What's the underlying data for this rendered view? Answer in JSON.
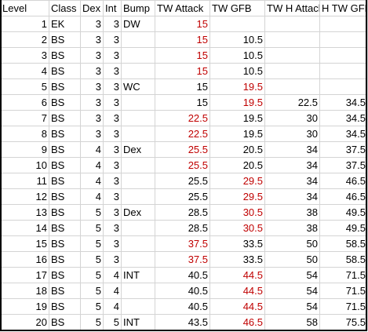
{
  "headers": [
    "Level",
    "Class",
    "Dex",
    "Int",
    "Bump",
    "TW Attack",
    "TW GFB",
    "TW H Attack",
    "H TW GFB"
  ],
  "colors": {
    "red": "#c00000",
    "black": "#000000",
    "grid": "#d4d4d4"
  },
  "rows": [
    {
      "level": "1",
      "class": "EK",
      "dex": "3",
      "int": "3",
      "bump": "DW",
      "tw_attack": "15",
      "tw_attack_color": "red",
      "tw_gfb": "",
      "tw_gfb_color": "black",
      "tw_h_attack": "",
      "h_tw_gfb": ""
    },
    {
      "level": "2",
      "class": "BS",
      "dex": "3",
      "int": "3",
      "bump": "",
      "tw_attack": "15",
      "tw_attack_color": "red",
      "tw_gfb": "10.5",
      "tw_gfb_color": "black",
      "tw_h_attack": "",
      "h_tw_gfb": ""
    },
    {
      "level": "3",
      "class": "BS",
      "dex": "3",
      "int": "3",
      "bump": "",
      "tw_attack": "15",
      "tw_attack_color": "red",
      "tw_gfb": "10.5",
      "tw_gfb_color": "black",
      "tw_h_attack": "",
      "h_tw_gfb": ""
    },
    {
      "level": "4",
      "class": "BS",
      "dex": "3",
      "int": "3",
      "bump": "",
      "tw_attack": "15",
      "tw_attack_color": "red",
      "tw_gfb": "10.5",
      "tw_gfb_color": "black",
      "tw_h_attack": "",
      "h_tw_gfb": ""
    },
    {
      "level": "5",
      "class": "BS",
      "dex": "3",
      "int": "3",
      "bump": "WC",
      "tw_attack": "15",
      "tw_attack_color": "black",
      "tw_gfb": "19.5",
      "tw_gfb_color": "red",
      "tw_h_attack": "",
      "h_tw_gfb": ""
    },
    {
      "level": "6",
      "class": "BS",
      "dex": "3",
      "int": "3",
      "bump": "",
      "tw_attack": "15",
      "tw_attack_color": "black",
      "tw_gfb": "19.5",
      "tw_gfb_color": "red",
      "tw_h_attack": "22.5",
      "h_tw_gfb": "34.5"
    },
    {
      "level": "7",
      "class": "BS",
      "dex": "3",
      "int": "3",
      "bump": "",
      "tw_attack": "22.5",
      "tw_attack_color": "red",
      "tw_gfb": "19.5",
      "tw_gfb_color": "black",
      "tw_h_attack": "30",
      "h_tw_gfb": "34.5"
    },
    {
      "level": "8",
      "class": "BS",
      "dex": "3",
      "int": "3",
      "bump": "",
      "tw_attack": "22.5",
      "tw_attack_color": "red",
      "tw_gfb": "19.5",
      "tw_gfb_color": "black",
      "tw_h_attack": "30",
      "h_tw_gfb": "34.5"
    },
    {
      "level": "9",
      "class": "BS",
      "dex": "4",
      "int": "3",
      "bump": "Dex",
      "tw_attack": "25.5",
      "tw_attack_color": "red",
      "tw_gfb": "20.5",
      "tw_gfb_color": "black",
      "tw_h_attack": "34",
      "h_tw_gfb": "37.5"
    },
    {
      "level": "10",
      "class": "BS",
      "dex": "4",
      "int": "3",
      "bump": "",
      "tw_attack": "25.5",
      "tw_attack_color": "red",
      "tw_gfb": "20.5",
      "tw_gfb_color": "black",
      "tw_h_attack": "34",
      "h_tw_gfb": "37.5"
    },
    {
      "level": "11",
      "class": "BS",
      "dex": "4",
      "int": "3",
      "bump": "",
      "tw_attack": "25.5",
      "tw_attack_color": "black",
      "tw_gfb": "29.5",
      "tw_gfb_color": "red",
      "tw_h_attack": "34",
      "h_tw_gfb": "46.5"
    },
    {
      "level": "12",
      "class": "BS",
      "dex": "4",
      "int": "3",
      "bump": "",
      "tw_attack": "25.5",
      "tw_attack_color": "black",
      "tw_gfb": "29.5",
      "tw_gfb_color": "red",
      "tw_h_attack": "34",
      "h_tw_gfb": "46.5"
    },
    {
      "level": "13",
      "class": "BS",
      "dex": "5",
      "int": "3",
      "bump": "Dex",
      "tw_attack": "28.5",
      "tw_attack_color": "black",
      "tw_gfb": "30.5",
      "tw_gfb_color": "red",
      "tw_h_attack": "38",
      "h_tw_gfb": "49.5"
    },
    {
      "level": "14",
      "class": "BS",
      "dex": "5",
      "int": "3",
      "bump": "",
      "tw_attack": "28.5",
      "tw_attack_color": "black",
      "tw_gfb": "30.5",
      "tw_gfb_color": "red",
      "tw_h_attack": "38",
      "h_tw_gfb": "49.5"
    },
    {
      "level": "15",
      "class": "BS",
      "dex": "5",
      "int": "3",
      "bump": "",
      "tw_attack": "37.5",
      "tw_attack_color": "red",
      "tw_gfb": "33.5",
      "tw_gfb_color": "black",
      "tw_h_attack": "50",
      "h_tw_gfb": "58.5"
    },
    {
      "level": "16",
      "class": "BS",
      "dex": "5",
      "int": "3",
      "bump": "",
      "tw_attack": "37.5",
      "tw_attack_color": "red",
      "tw_gfb": "33.5",
      "tw_gfb_color": "black",
      "tw_h_attack": "50",
      "h_tw_gfb": "58.5"
    },
    {
      "level": "17",
      "class": "BS",
      "dex": "5",
      "int": "4",
      "bump": "INT",
      "tw_attack": "40.5",
      "tw_attack_color": "black",
      "tw_gfb": "44.5",
      "tw_gfb_color": "red",
      "tw_h_attack": "54",
      "h_tw_gfb": "71.5"
    },
    {
      "level": "18",
      "class": "BS",
      "dex": "5",
      "int": "4",
      "bump": "",
      "tw_attack": "40.5",
      "tw_attack_color": "black",
      "tw_gfb": "44.5",
      "tw_gfb_color": "red",
      "tw_h_attack": "54",
      "h_tw_gfb": "71.5"
    },
    {
      "level": "19",
      "class": "BS",
      "dex": "5",
      "int": "4",
      "bump": "",
      "tw_attack": "40.5",
      "tw_attack_color": "black",
      "tw_gfb": "44.5",
      "tw_gfb_color": "red",
      "tw_h_attack": "54",
      "h_tw_gfb": "71.5"
    },
    {
      "level": "20",
      "class": "BS",
      "dex": "5",
      "int": "5",
      "bump": "INT",
      "tw_attack": "43.5",
      "tw_attack_color": "black",
      "tw_gfb": "46.5",
      "tw_gfb_color": "red",
      "tw_h_attack": "58",
      "h_tw_gfb": "75.5"
    }
  ]
}
